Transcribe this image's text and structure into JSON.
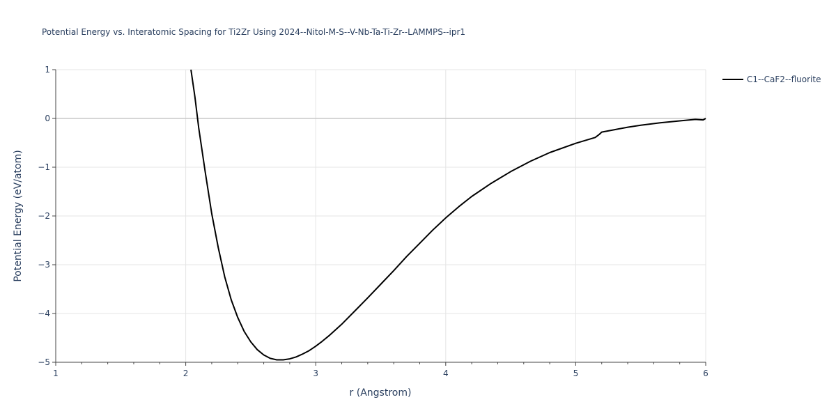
{
  "chart_data": {
    "type": "line",
    "title": "Potential Energy vs. Interatomic Spacing for Ti2Zr Using 2024--Nitol-M-S--V-Nb-Ta-Ti-Zr--LAMMPS--ipr1",
    "xlabel": "r (Angstrom)",
    "ylabel": "Potential Energy (eV/atom)",
    "xlim": [
      1,
      6
    ],
    "ylim": [
      -5,
      1
    ],
    "xticks": [
      "1",
      "2",
      "3",
      "4",
      "5",
      "6"
    ],
    "xtick_values": [
      1,
      2,
      3,
      4,
      5,
      6
    ],
    "yticks": [
      "1",
      "0",
      "−1",
      "−2",
      "−3",
      "−4",
      "−5"
    ],
    "ytick_values": [
      1,
      0,
      -1,
      -2,
      -3,
      -4,
      -5
    ],
    "grid": true,
    "legend_position": "top-right",
    "series": [
      {
        "name": "C1--CaF2--fluorite",
        "color": "#000000",
        "x": [
          2.04,
          2.07,
          2.1,
          2.15,
          2.2,
          2.25,
          2.3,
          2.35,
          2.4,
          2.45,
          2.5,
          2.55,
          2.6,
          2.65,
          2.7,
          2.75,
          2.8,
          2.85,
          2.9,
          2.95,
          3.0,
          3.05,
          3.1,
          3.2,
          3.3,
          3.4,
          3.5,
          3.6,
          3.7,
          3.8,
          3.9,
          4.0,
          4.1,
          4.2,
          4.35,
          4.5,
          4.65,
          4.8,
          5.0,
          5.15,
          5.18,
          5.2,
          5.3,
          5.4,
          5.5,
          5.65,
          5.8,
          5.92,
          5.98,
          6.0
        ],
        "y": [
          1.0,
          0.45,
          -0.2,
          -1.1,
          -1.95,
          -2.65,
          -3.25,
          -3.72,
          -4.08,
          -4.37,
          -4.58,
          -4.74,
          -4.85,
          -4.92,
          -4.95,
          -4.95,
          -4.93,
          -4.89,
          -4.83,
          -4.76,
          -4.67,
          -4.57,
          -4.46,
          -4.22,
          -3.95,
          -3.68,
          -3.4,
          -3.12,
          -2.83,
          -2.56,
          -2.29,
          -2.04,
          -1.81,
          -1.6,
          -1.33,
          -1.09,
          -0.88,
          -0.7,
          -0.51,
          -0.39,
          -0.33,
          -0.28,
          -0.23,
          -0.18,
          -0.14,
          -0.09,
          -0.05,
          -0.02,
          -0.03,
          0.0
        ]
      }
    ]
  }
}
